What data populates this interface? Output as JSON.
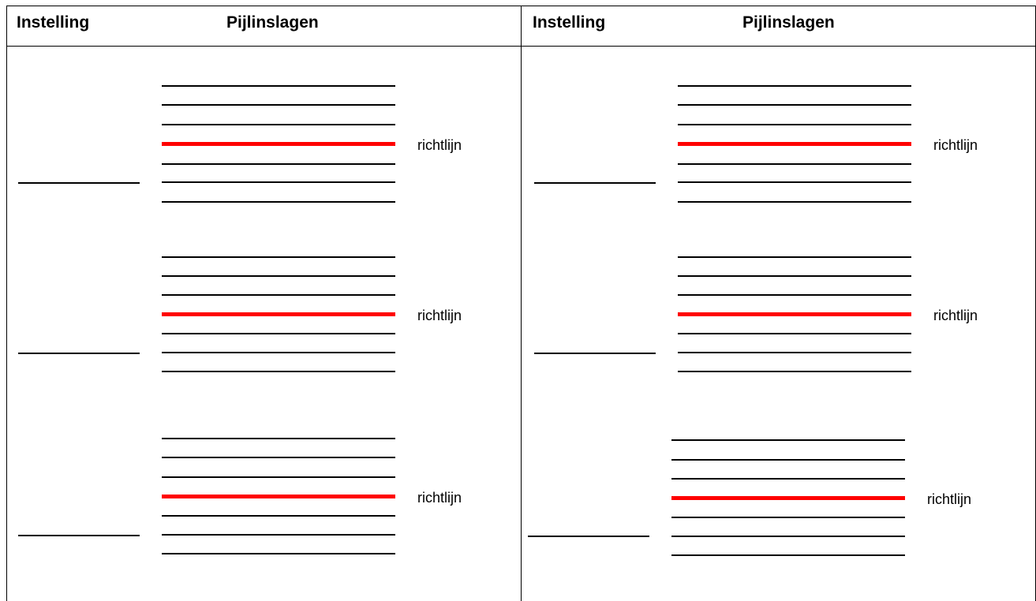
{
  "columns": [
    {
      "instelling_header": "Instelling",
      "pijlinslagen_header": "Pijlinslagen"
    },
    {
      "instelling_header": "Instelling",
      "pijlinslagen_header": "Pijlinslagen"
    }
  ],
  "rows": [
    {
      "richtlijn_label": "richtlijn"
    },
    {
      "richtlijn_label": "richtlijn"
    },
    {
      "richtlijn_label": "richtlijn"
    }
  ],
  "colors": {
    "richtlijn_line": "#ff0000",
    "line": "#000000"
  }
}
